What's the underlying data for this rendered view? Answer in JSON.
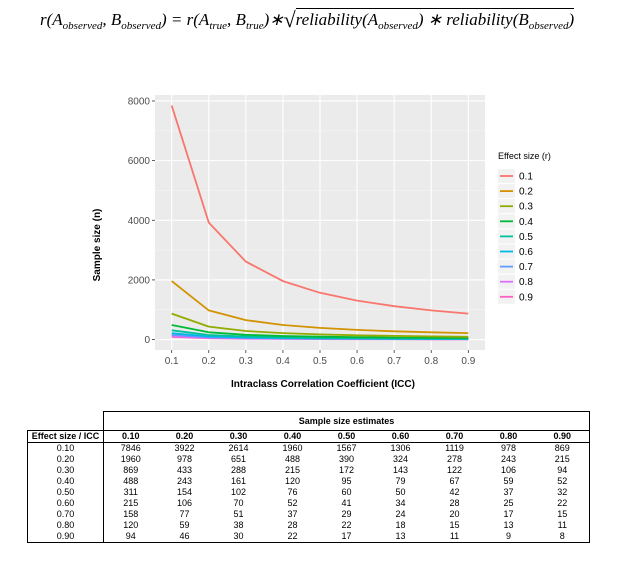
{
  "formula": {
    "r": "r(",
    "A": "A",
    "sub_observed": "observed",
    "comma": ", ",
    "B": "B",
    "close_eq": ") = r(",
    "sub_true": "true",
    "close_times": ")",
    "star": "∗",
    "radical": "√",
    "rel1": "reliability(",
    "rel2": "reliability(",
    "close": ")",
    "mult": " ∗ "
  },
  "chart_data": {
    "type": "line",
    "xlabel": "Intraclass Correlation Coefficient (ICC)",
    "ylabel": "Sample size (n)",
    "x": [
      0.1,
      0.2,
      0.3,
      0.4,
      0.5,
      0.6,
      0.7,
      0.8,
      0.9
    ],
    "xticks": [
      "0.1",
      "0.2",
      "0.3",
      "0.4",
      "0.5",
      "0.6",
      "0.7",
      "0.8",
      "0.9"
    ],
    "yticks": [
      "0",
      "2000",
      "4000",
      "6000",
      "8000"
    ],
    "ylim": [
      -350,
      8200
    ],
    "legend_title": "Effect size (r)",
    "legend_position": "right",
    "grid": true,
    "series": [
      {
        "name": "0.1",
        "color": "#F8766D",
        "values": [
          7846,
          3922,
          2614,
          1960,
          1567,
          1306,
          1119,
          978,
          869
        ]
      },
      {
        "name": "0.2",
        "color": "#D39200",
        "values": [
          1960,
          978,
          651,
          488,
          390,
          324,
          278,
          243,
          215
        ]
      },
      {
        "name": "0.3",
        "color": "#93AA00",
        "values": [
          869,
          433,
          288,
          215,
          172,
          143,
          122,
          106,
          94
        ]
      },
      {
        "name": "0.4",
        "color": "#00BA38",
        "values": [
          488,
          243,
          161,
          120,
          95,
          79,
          67,
          59,
          52
        ]
      },
      {
        "name": "0.5",
        "color": "#00C19F",
        "values": [
          311,
          154,
          102,
          76,
          60,
          50,
          42,
          37,
          32
        ]
      },
      {
        "name": "0.6",
        "color": "#00B9E3",
        "values": [
          215,
          106,
          70,
          52,
          41,
          34,
          28,
          25,
          22
        ]
      },
      {
        "name": "0.7",
        "color": "#619CFF",
        "values": [
          158,
          77,
          51,
          37,
          29,
          24,
          20,
          17,
          15
        ]
      },
      {
        "name": "0.8",
        "color": "#DB72FB",
        "values": [
          120,
          59,
          38,
          28,
          22,
          18,
          15,
          13,
          11
        ]
      },
      {
        "name": "0.9",
        "color": "#FF61C3",
        "values": [
          94,
          46,
          30,
          22,
          17,
          13,
          11,
          9,
          8
        ]
      }
    ]
  },
  "table": {
    "group_title": "Sample size estimates",
    "corner": "Effect size / ICC",
    "columns": [
      "0.10",
      "0.20",
      "0.30",
      "0.40",
      "0.50",
      "0.60",
      "0.70",
      "0.80",
      "0.90"
    ],
    "rows": [
      {
        "label": "0.10",
        "values": [
          "7846",
          "3922",
          "2614",
          "1960",
          "1567",
          "1306",
          "1119",
          "978",
          "869"
        ]
      },
      {
        "label": "0.20",
        "values": [
          "1960",
          "978",
          "651",
          "488",
          "390",
          "324",
          "278",
          "243",
          "215"
        ]
      },
      {
        "label": "0.30",
        "values": [
          "869",
          "433",
          "288",
          "215",
          "172",
          "143",
          "122",
          "106",
          "94"
        ]
      },
      {
        "label": "0.40",
        "values": [
          "488",
          "243",
          "161",
          "120",
          "95",
          "79",
          "67",
          "59",
          "52"
        ]
      },
      {
        "label": "0.50",
        "values": [
          "311",
          "154",
          "102",
          "76",
          "60",
          "50",
          "42",
          "37",
          "32"
        ]
      },
      {
        "label": "0.60",
        "values": [
          "215",
          "106",
          "70",
          "52",
          "41",
          "34",
          "28",
          "25",
          "22"
        ]
      },
      {
        "label": "0.70",
        "values": [
          "158",
          "77",
          "51",
          "37",
          "29",
          "24",
          "20",
          "17",
          "15"
        ]
      },
      {
        "label": "0.80",
        "values": [
          "120",
          "59",
          "38",
          "28",
          "22",
          "18",
          "15",
          "13",
          "11"
        ]
      },
      {
        "label": "0.90",
        "values": [
          "94",
          "46",
          "30",
          "22",
          "17",
          "13",
          "11",
          "9",
          "8"
        ]
      }
    ]
  }
}
